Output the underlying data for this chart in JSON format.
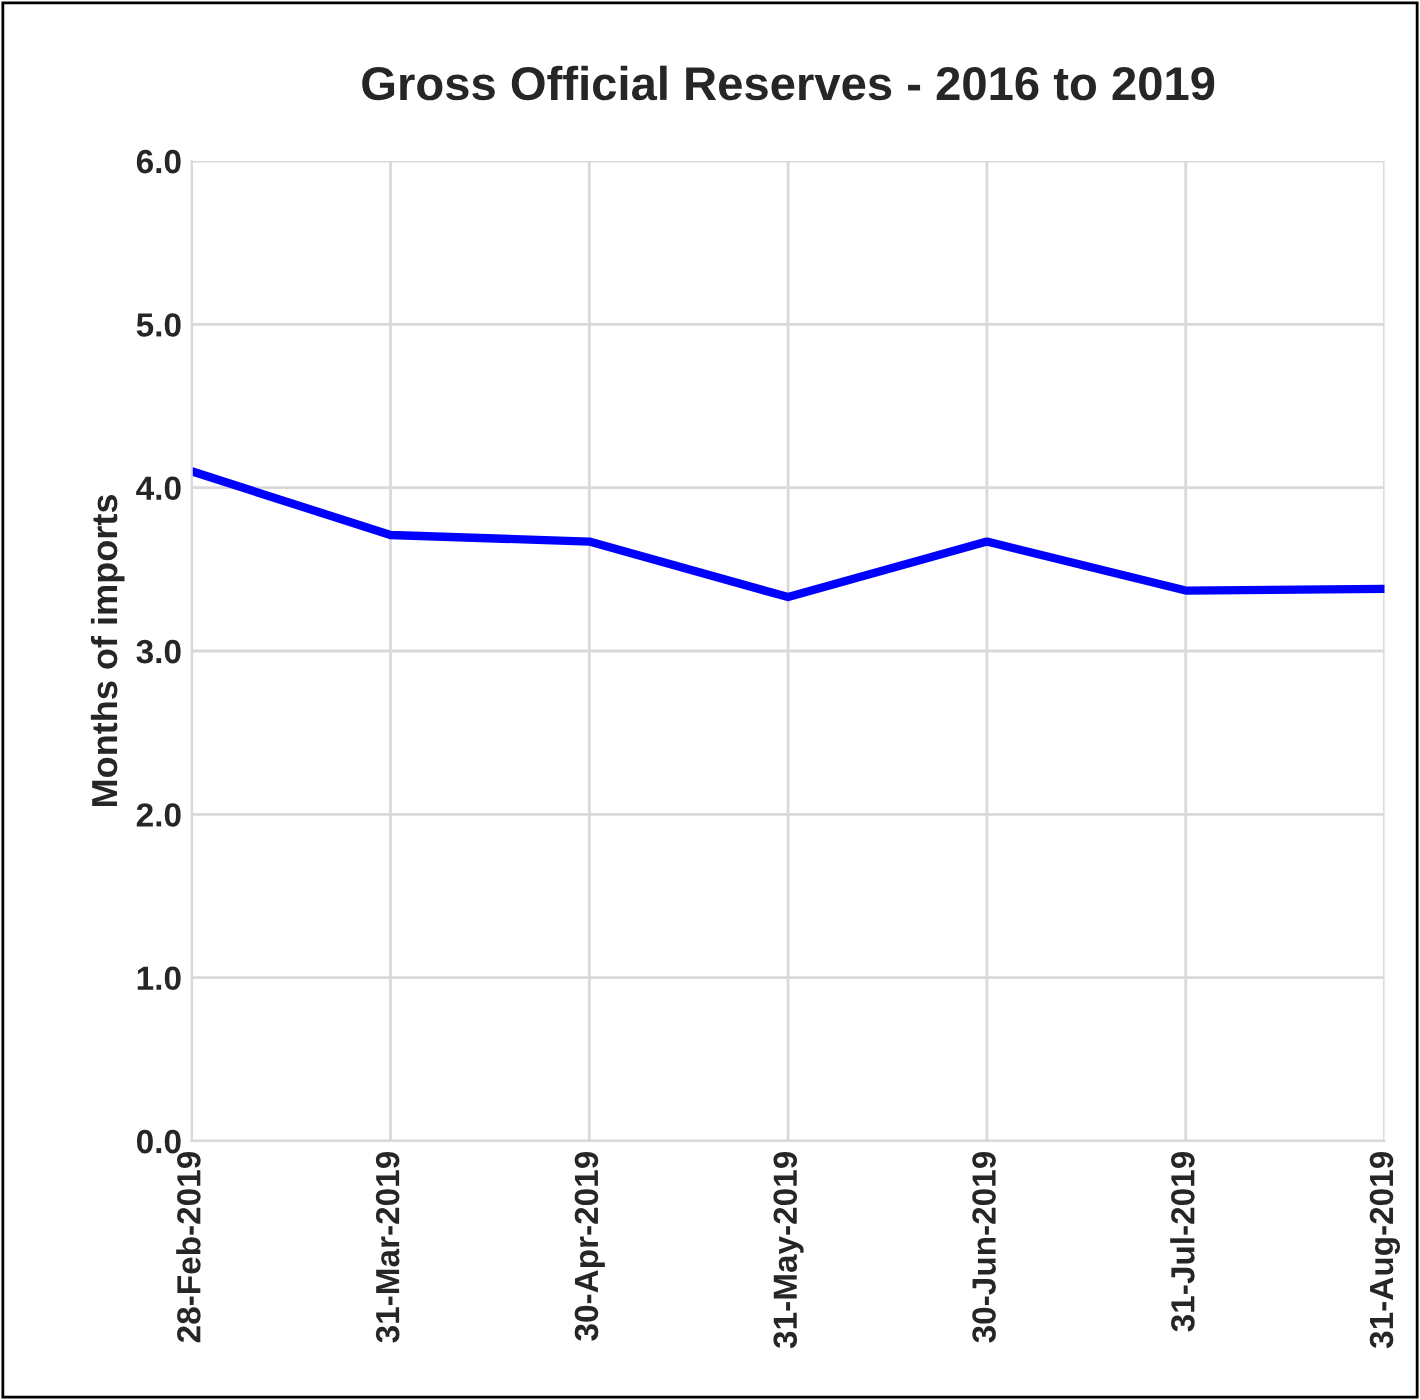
{
  "chart_data": {
    "type": "line",
    "title": "Gross Official Reserves - 2016 to 2019",
    "ylabel": "Months of imports",
    "categories": [
      "28-Feb-2019",
      "31-Mar-2019",
      "30-Apr-2019",
      "31-May-2019",
      "30-Jun-2019",
      "31-Jul-2019",
      "31-Aug-2019"
    ],
    "series": [
      {
        "color": "#0000ff",
        "values": [
          4.1,
          3.71,
          3.67,
          3.33,
          3.67,
          3.37,
          3.38
        ]
      }
    ],
    "ylim": [
      0,
      6
    ],
    "yticks": [
      {
        "value": 0,
        "label": "0.0"
      },
      {
        "value": 1,
        "label": "1.0"
      },
      {
        "value": 2,
        "label": "2.0"
      },
      {
        "value": 3,
        "label": "3.0"
      },
      {
        "value": 4,
        "label": "4.0"
      },
      {
        "value": 5,
        "label": "5.0"
      },
      {
        "value": 6,
        "label": "6.0"
      }
    ],
    "grid": true,
    "legend": false,
    "marker": "none",
    "line_style": "solid"
  }
}
